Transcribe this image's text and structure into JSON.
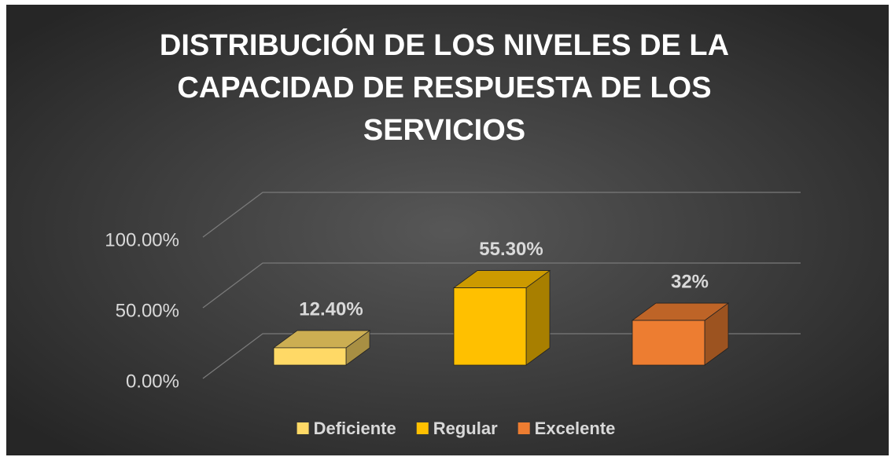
{
  "chart_data": {
    "type": "bar3d",
    "title": [
      "DISTRIBUCIÓN DE LOS NIVELES DE LA",
      "CAPACIDAD DE RESPUESTA DE LOS",
      "SERVICIOS"
    ],
    "series": [
      {
        "name": "Deficiente",
        "color": "#ffd966",
        "values": [
          12.4
        ],
        "value_labels": [
          "12.40%"
        ]
      },
      {
        "name": "Regular",
        "color": "#ffc000",
        "values": [
          55.3
        ],
        "value_labels": [
          "55.30%"
        ]
      },
      {
        "name": "Excelente",
        "color": "#ed7d31",
        "values": [
          32
        ],
        "value_labels": [
          "32%"
        ]
      }
    ],
    "ylim": [
      0,
      100
    ],
    "yticks": [
      {
        "value": 0,
        "label": "0.00%"
      },
      {
        "value": 50,
        "label": "50.00%"
      },
      {
        "value": 100,
        "label": "100.00%"
      }
    ],
    "grid": true,
    "legend": "bottom"
  }
}
